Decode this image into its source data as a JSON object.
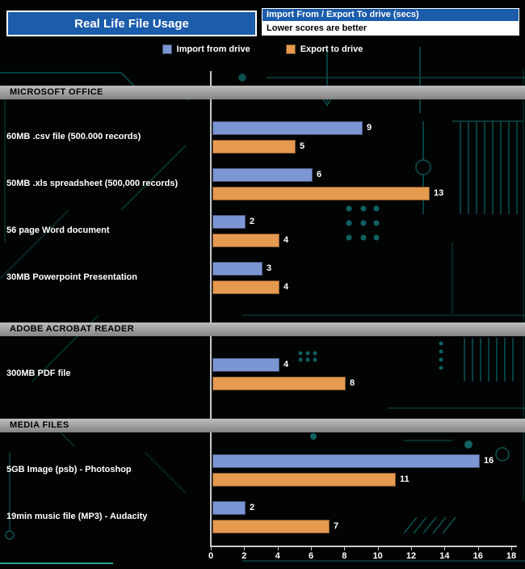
{
  "header": {
    "title": "Real Life File Usage",
    "subtitle": "Import From  / Export To drive (secs)",
    "note": "Lower scores are better"
  },
  "legend": [
    {
      "label": "Import from drive",
      "color": "#7c95d3"
    },
    {
      "label": "Export to drive",
      "color": "#e59a50"
    }
  ],
  "colors": {
    "title_box": "#1b5cab",
    "section_header": "#9e9e9e",
    "import_bar": "#7c95d3",
    "export_bar": "#e59a50",
    "background": "#020404",
    "circuit_trace": "#0d5151"
  },
  "chart_data": {
    "type": "bar",
    "orientation": "horizontal",
    "title": "Real Life File Usage",
    "subtitle": "Import From / Export To drive (secs)",
    "note": "Lower scores are better",
    "unit": "secs",
    "xlabel": "",
    "ylabel": "",
    "xlim": [
      0,
      18
    ],
    "x_ticks": [
      0,
      2,
      4,
      6,
      8,
      10,
      12,
      14,
      16,
      18
    ],
    "series_names": [
      "Import from drive",
      "Export to drive"
    ],
    "sections": [
      {
        "label": "MICROSOFT OFFICE",
        "items": [
          {
            "category": "60MB .csv file (500.000 records)",
            "import": 9,
            "export": 5
          },
          {
            "category": "50MB .xls spreadsheet (500,000 records)",
            "import": 6,
            "export": 13
          },
          {
            "category": "56 page Word document",
            "import": 2,
            "export": 4
          },
          {
            "category": "30MB Powerpoint Presentation",
            "import": 3,
            "export": 4
          }
        ]
      },
      {
        "label": "ADOBE ACROBAT READER",
        "items": [
          {
            "category": "300MB PDF file",
            "import": 4,
            "export": 8
          }
        ]
      },
      {
        "label": "MEDIA FILES",
        "items": [
          {
            "category": "5GB Image (psb) -  Photoshop",
            "import": 16,
            "export": 11
          },
          {
            "category": "19min music file (MP3) - Audacity",
            "import": 2,
            "export": 7
          }
        ]
      }
    ]
  }
}
